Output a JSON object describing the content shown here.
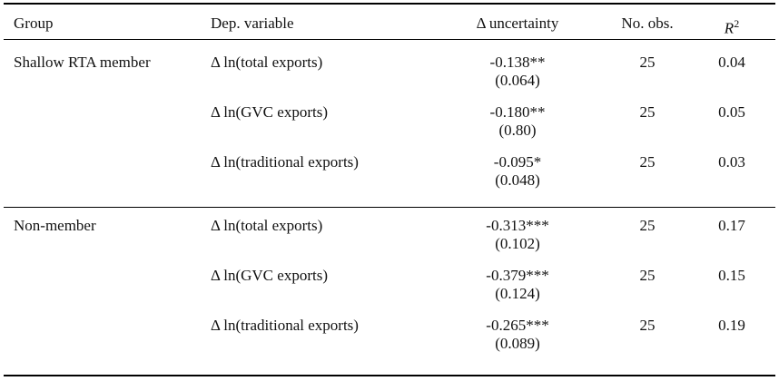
{
  "table": {
    "headers": {
      "group": "Group",
      "dep_var": "Dep. variable",
      "delta": "Δ uncertainty",
      "obs": "No. obs.",
      "r2": "R",
      "r2_sup": "2"
    },
    "rows": [
      {
        "group": "Shallow RTA member",
        "dep_var": "Δ ln(total exports)",
        "coef": "-0.138**",
        "se": "(0.064)",
        "obs": "25",
        "r2": "0.04"
      },
      {
        "group": "",
        "dep_var": "Δ ln(GVC exports)",
        "coef": "-0.180**",
        "se": "(0.80)",
        "obs": "25",
        "r2": "0.05"
      },
      {
        "group": "",
        "dep_var": "Δ ln(traditional exports)",
        "coef": "-0.095*",
        "se": "(0.048)",
        "obs": "25",
        "r2": "0.03"
      },
      {
        "group": "Non-member",
        "dep_var": "Δ ln(total exports)",
        "coef": "-0.313***",
        "se": "(0.102)",
        "obs": "25",
        "r2": "0.17"
      },
      {
        "group": "",
        "dep_var": "Δ ln(GVC exports)",
        "coef": "-0.379***",
        "se": "(0.124)",
        "obs": "25",
        "r2": "0.15"
      },
      {
        "group": "",
        "dep_var": "Δ ln(traditional exports)",
        "coef": "-0.265***",
        "se": "(0.089)",
        "obs": "25",
        "r2": "0.19"
      }
    ]
  }
}
